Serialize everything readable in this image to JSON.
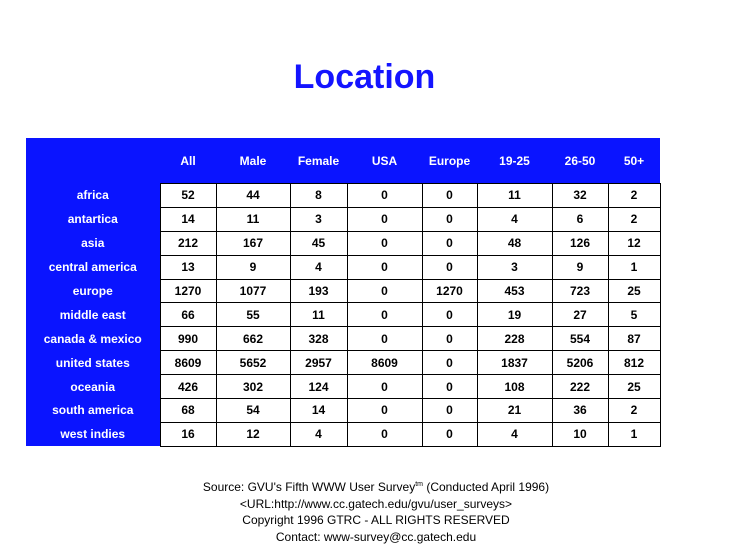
{
  "title": "Location",
  "colors": {
    "header_bg": "#0a14ff",
    "title": "#1414ff"
  },
  "table": {
    "columns": [
      "",
      "All",
      "Male",
      "Female",
      "USA",
      "Europe",
      "19-25",
      "26-50",
      "50+"
    ],
    "rows": [
      {
        "label": "africa",
        "values": [
          "52",
          "44",
          "8",
          "0",
          "0",
          "11",
          "32",
          "2"
        ]
      },
      {
        "label": "antartica",
        "values": [
          "14",
          "11",
          "3",
          "0",
          "0",
          "4",
          "6",
          "2"
        ]
      },
      {
        "label": "asia",
        "values": [
          "212",
          "167",
          "45",
          "0",
          "0",
          "48",
          "126",
          "12"
        ]
      },
      {
        "label": "central america",
        "values": [
          "13",
          "9",
          "4",
          "0",
          "0",
          "3",
          "9",
          "1"
        ]
      },
      {
        "label": "europe",
        "values": [
          "1270",
          "1077",
          "193",
          "0",
          "1270",
          "453",
          "723",
          "25"
        ]
      },
      {
        "label": "middle east",
        "values": [
          "66",
          "55",
          "11",
          "0",
          "0",
          "19",
          "27",
          "5"
        ]
      },
      {
        "label": "canada & mexico",
        "values": [
          "990",
          "662",
          "328",
          "0",
          "0",
          "228",
          "554",
          "87"
        ]
      },
      {
        "label": "united states",
        "values": [
          "8609",
          "5652",
          "2957",
          "8609",
          "0",
          "1837",
          "5206",
          "812"
        ]
      },
      {
        "label": "oceania",
        "values": [
          "426",
          "302",
          "124",
          "0",
          "0",
          "108",
          "222",
          "25"
        ]
      },
      {
        "label": "south america",
        "values": [
          "68",
          "54",
          "14",
          "0",
          "0",
          "21",
          "36",
          "2"
        ]
      },
      {
        "label": "west indies",
        "values": [
          "16",
          "12",
          "4",
          "0",
          "0",
          "4",
          "10",
          "1"
        ]
      }
    ]
  },
  "footer": {
    "source": "Source: GVU's Fifth WWW User Survey",
    "tm": "tm",
    "conducted": " (Conducted April 1996)",
    "url": "<URL:http://www.cc.gatech.edu/gvu/user_surveys>",
    "copyright": "Copyright 1996 GTRC -  ALL RIGHTS RESERVED",
    "contact": "Contact: www-survey@cc.gatech.edu"
  }
}
